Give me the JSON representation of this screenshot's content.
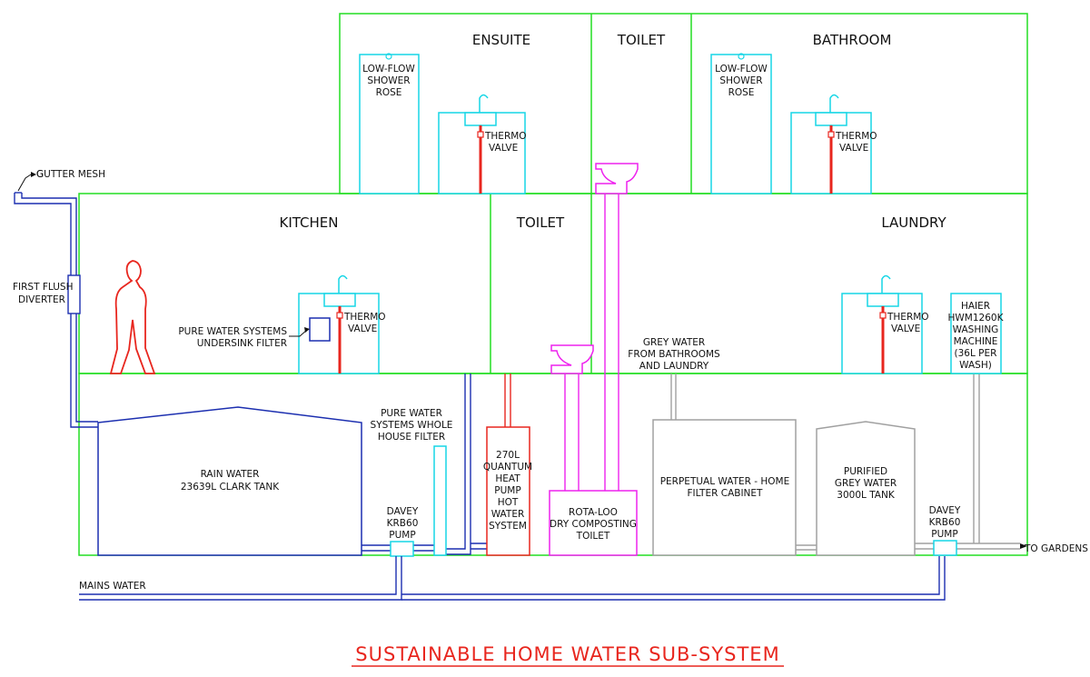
{
  "colors": {
    "wall": "#22dd22",
    "rain_pipe": "#1c2fb0",
    "fixture": "#17d6e6",
    "hot": "#e8261e",
    "toilet": "#ee22ee",
    "grey": "#a0a0a0"
  },
  "title": "SUSTAINABLE HOME WATER SUB-SYSTEM",
  "rooms": {
    "ensuite": "ENSUITE",
    "toilet_upper": "TOILET",
    "bathroom": "BATHROOM",
    "kitchen": "KITCHEN",
    "toilet_lower": "TOILET",
    "laundry": "LAUNDRY"
  },
  "labels": {
    "gutter_mesh": "GUTTER MESH",
    "first_flush": [
      "FIRST FLUSH",
      "DIVERTER"
    ],
    "shower_ensuite": [
      "LOW-FLOW",
      "SHOWER",
      "ROSE"
    ],
    "shower_bathroom": [
      "LOW-FLOW",
      "SHOWER",
      "ROSE"
    ],
    "thermo_ensuite": [
      "THERMO",
      "VALVE"
    ],
    "thermo_bathroom": [
      "THERMO",
      "VALVE"
    ],
    "thermo_kitchen": [
      "THERMO",
      "VALVE"
    ],
    "thermo_laundry": [
      "THERMO",
      "VALVE"
    ],
    "undersink_filter": [
      "PURE WATER SYSTEMS",
      "UNDERSINK FILTER"
    ],
    "washing_machine": [
      "HAIER",
      "HWM1260K",
      "WASHING",
      "MACHINE",
      "(36L PER",
      "WASH)"
    ],
    "grey_water": [
      "GREY WATER",
      "FROM BATHROOMS",
      "AND LAUNDRY"
    ],
    "rain_tank": [
      "RAIN WATER",
      "23639L CLARK TANK"
    ],
    "whole_house_filter": [
      "PURE WATER",
      "SYSTEMS WHOLE",
      "HOUSE FILTER"
    ],
    "pump_left": [
      "DAVEY",
      "KRB60",
      "PUMP"
    ],
    "pump_right": [
      "DAVEY",
      "KRB60",
      "PUMP"
    ],
    "heat_pump": [
      "270L",
      "QUANTUM",
      "HEAT",
      "PUMP",
      "HOT",
      "WATER",
      "SYSTEM"
    ],
    "composting_toilet": [
      "ROTA-LOO",
      "DRY COMPOSTING",
      "TOILET"
    ],
    "filter_cabinet": [
      "PERPETUAL WATER - HOME",
      "FILTER CABINET"
    ],
    "purified_tank": [
      "PURIFIED",
      "GREY WATER",
      "3000L TANK"
    ],
    "mains_water": "MAINS WATER",
    "to_gardens": "TO GARDENS"
  }
}
